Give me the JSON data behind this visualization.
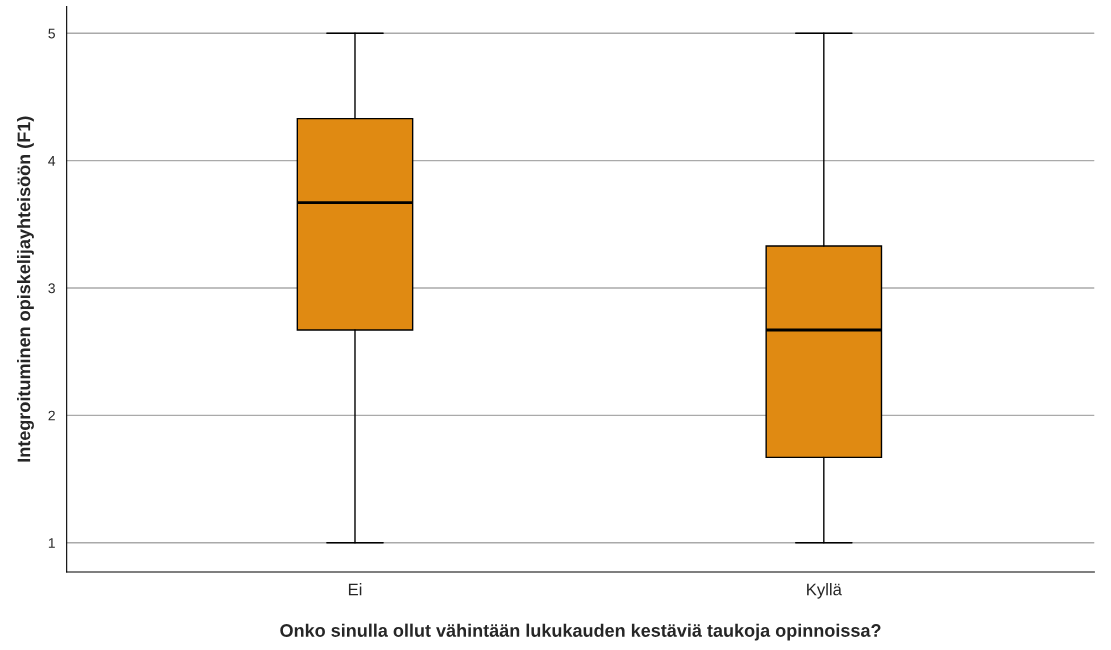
{
  "chart_data": {
    "type": "box",
    "xlabel": "Onko sinulla ollut vähintään lukukauden kestäviä taukoja opinnoissa?",
    "ylabel": "Integroituminen opiskelijayhteisöön (F1)",
    "categories": [
      "Ei",
      "Kyllä"
    ],
    "series": [
      {
        "color": "#e08a12",
        "boxes": [
          {
            "low": 1,
            "q1": 2.67,
            "median": 3.67,
            "q3": 4.33,
            "high": 5
          },
          {
            "low": 1,
            "q1": 1.67,
            "median": 2.67,
            "q3": 3.33,
            "high": 5
          }
        ]
      }
    ],
    "ylim": [
      0.77,
      5.21
    ],
    "yticks": [
      1,
      2,
      3,
      4,
      5
    ],
    "grid": "y",
    "legend": false
  }
}
